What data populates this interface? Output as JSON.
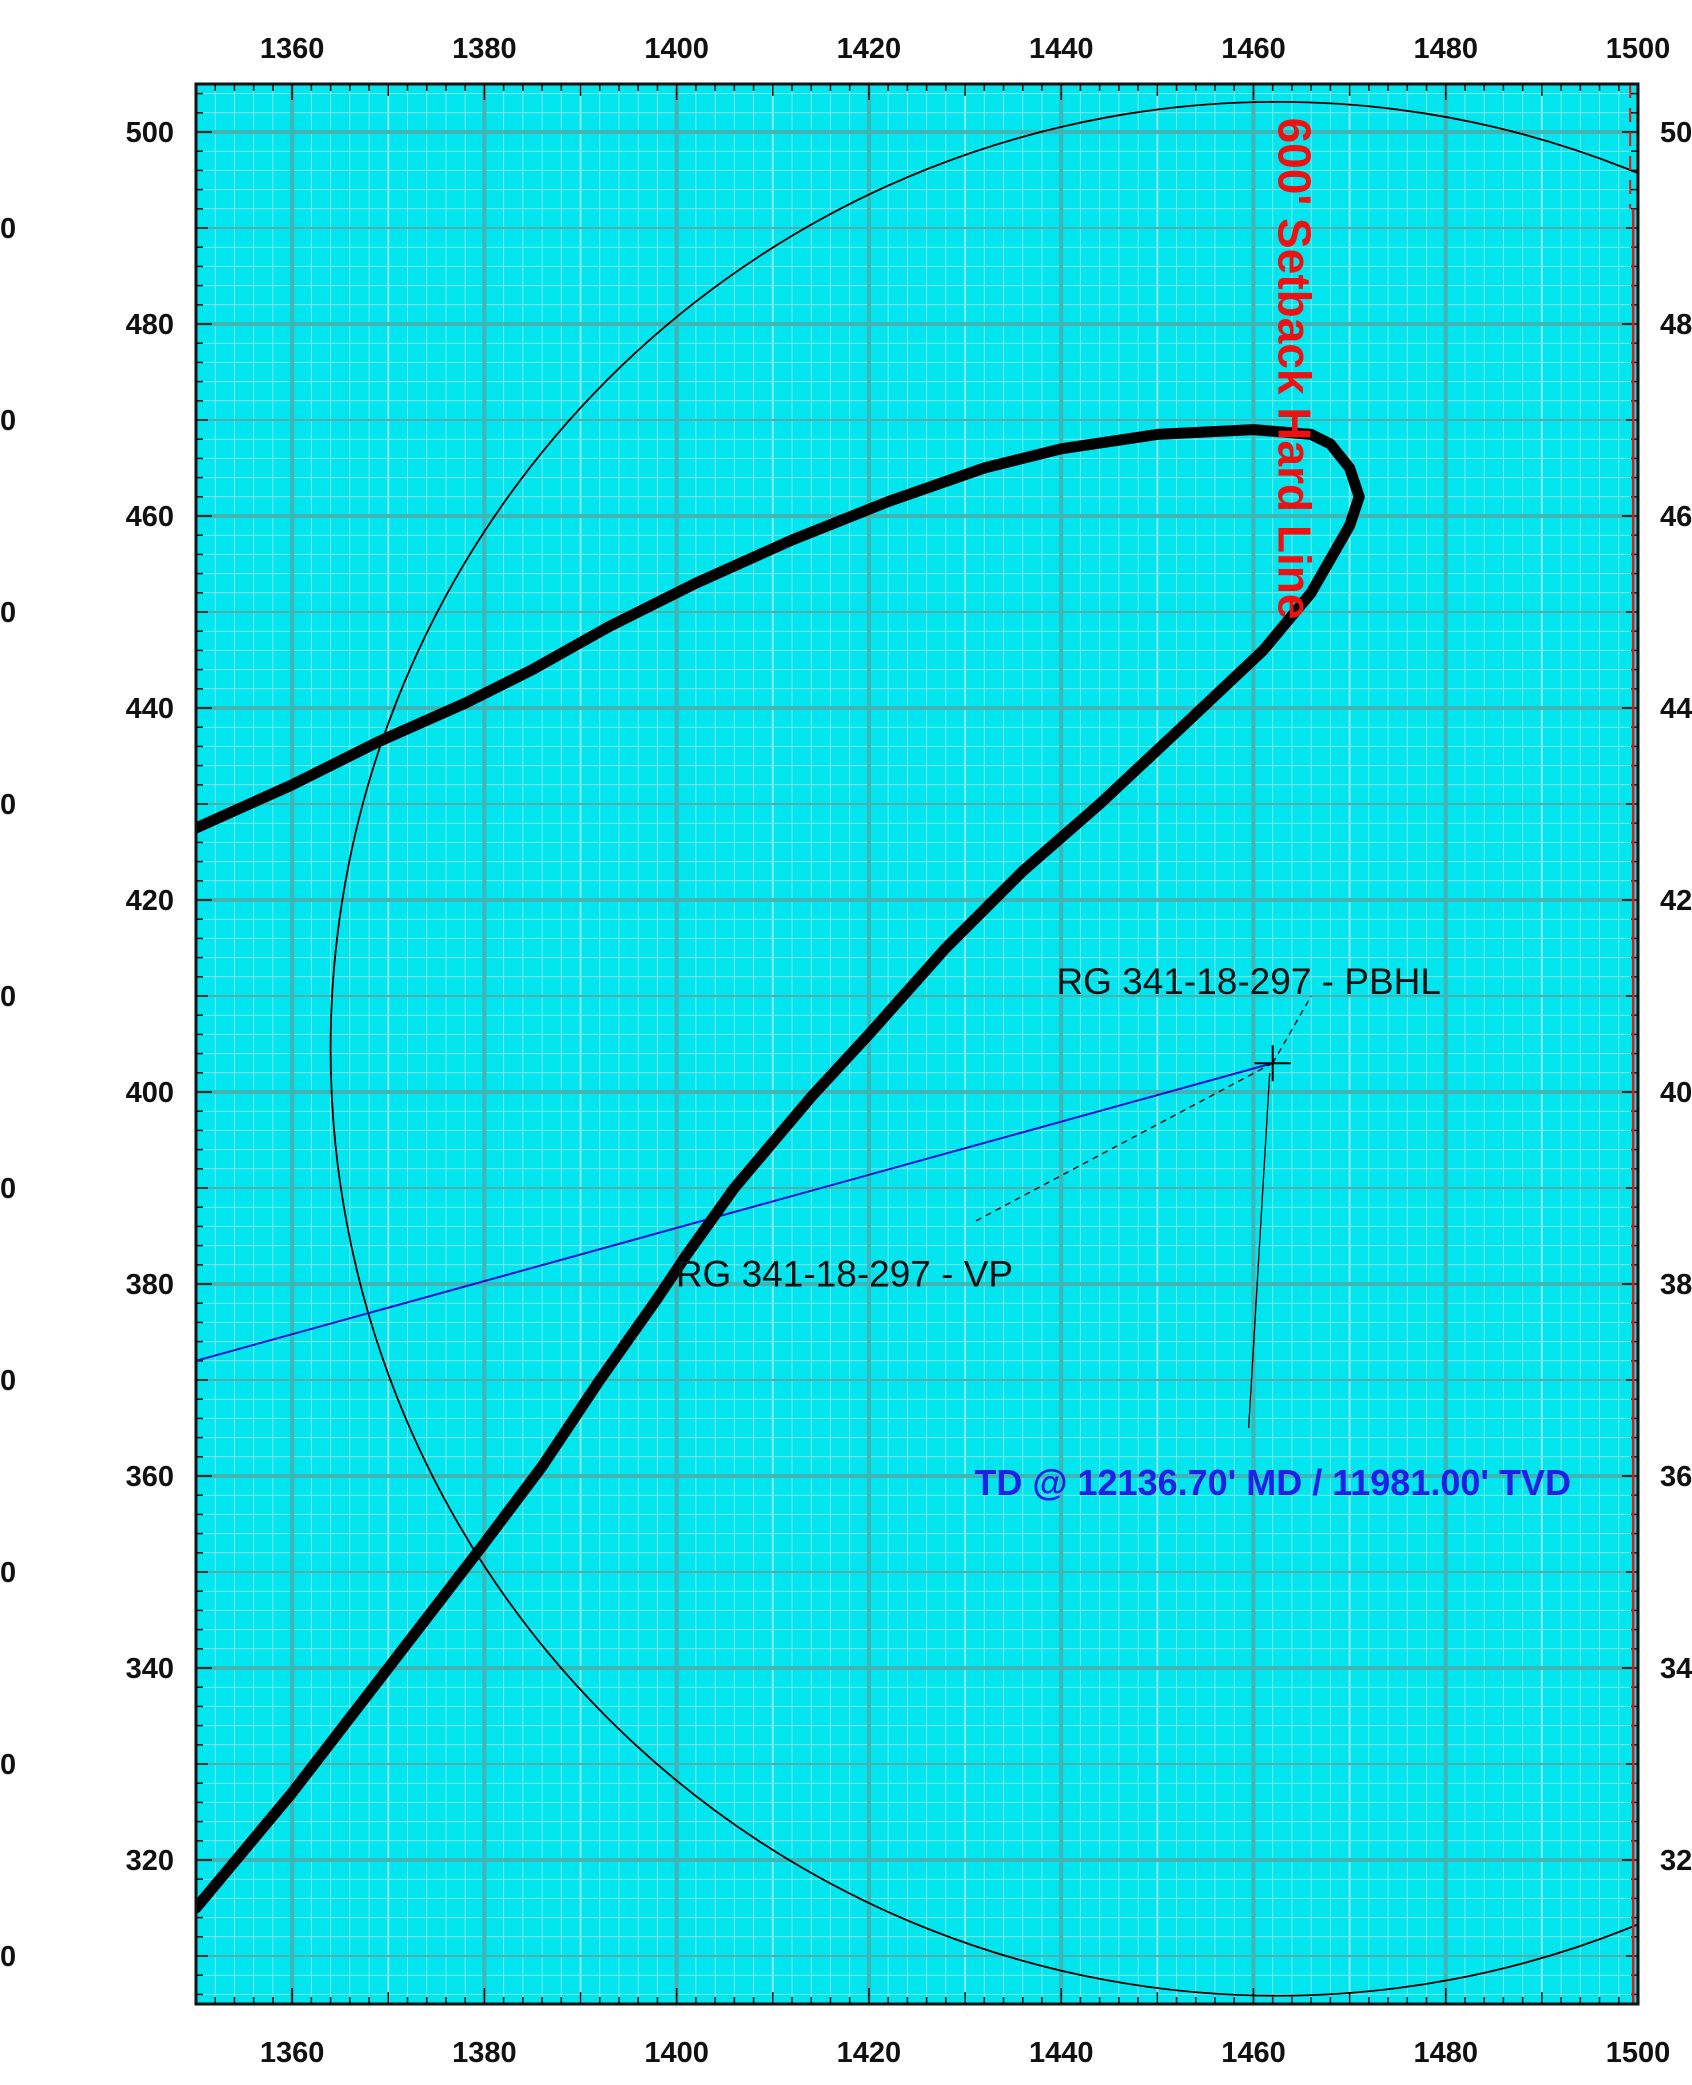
{
  "chart_data": {
    "type": "line",
    "title": "",
    "xlabel": "",
    "ylabel": "",
    "xlim": [
      1350,
      1500
    ],
    "ylim": [
      305,
      505
    ],
    "grid": true,
    "x_ticks": [
      1360,
      1380,
      1400,
      1420,
      1440,
      1460,
      1480,
      1500
    ],
    "y_ticks": [
      320,
      340,
      360,
      380,
      400,
      420,
      440,
      460,
      480,
      500
    ],
    "x_tick_labels": [
      "1360",
      "1380",
      "1400",
      "1420",
      "1440",
      "1460",
      "1480",
      "1500"
    ],
    "y_tick_labels": [
      "320",
      "340",
      "360",
      "380",
      "400",
      "420",
      "440",
      "460",
      "480",
      "500"
    ],
    "right_tick_labels": [
      "32",
      "34",
      "36",
      "38",
      "40",
      "42",
      "44",
      "46",
      "48",
      "50"
    ],
    "left_partial_labels": [
      "0",
      "0",
      "0",
      "0",
      "0",
      "0",
      "0",
      "0",
      "0",
      "0",
      "0"
    ],
    "colors": {
      "grid_major": "#3fb5b5",
      "grid_minor": "#7fe8e8",
      "background": "#00e5ee",
      "wellbore": "#000000",
      "plan_line": "#1414d2",
      "setback": "#ee1111",
      "td_text": "#1f1fe6"
    },
    "series": [
      {
        "key": "wellbore",
        "values": [
          [
            1350,
            315
          ],
          [
            1355,
            321
          ],
          [
            1360,
            327
          ],
          [
            1365,
            333.5
          ],
          [
            1370,
            340
          ],
          [
            1375,
            346.5
          ],
          [
            1380,
            353
          ],
          [
            1386,
            361
          ],
          [
            1392,
            370
          ],
          [
            1398,
            378.5
          ],
          [
            1401,
            383
          ],
          [
            1406,
            390
          ],
          [
            1414,
            399.5
          ],
          [
            1420,
            406
          ],
          [
            1428,
            415
          ],
          [
            1436,
            423
          ],
          [
            1444,
            430
          ],
          [
            1452,
            437.5
          ],
          [
            1461,
            446
          ],
          [
            1466,
            452
          ],
          [
            1470,
            459
          ],
          [
            1471,
            462
          ],
          [
            1470,
            465
          ],
          [
            1468,
            467.5
          ],
          [
            1466,
            468.5
          ],
          [
            1460,
            469
          ],
          [
            1450,
            468.5
          ],
          [
            1440,
            467
          ],
          [
            1432,
            465
          ],
          [
            1422,
            461.5
          ],
          [
            1412,
            457.5
          ],
          [
            1402,
            453
          ],
          [
            1393,
            448.5
          ],
          [
            1385,
            444
          ],
          [
            1378,
            440.5
          ],
          [
            1369,
            436.5
          ],
          [
            1360,
            432
          ],
          [
            1350,
            427.5
          ]
        ]
      },
      {
        "key": "plan-line",
        "values": [
          [
            1350,
            372
          ],
          [
            1462,
            403
          ]
        ]
      }
    ],
    "circle": {
      "center": [
        1462.5,
        404.5
      ],
      "radius": 98.5
    },
    "setback_line": {
      "x": 1499.5,
      "label": "600' Setback Hard Line"
    },
    "annotations": [
      {
        "key": "pbhl",
        "text": "RG 341-18-297 - PBHL",
        "x": 1459.5,
        "y": 410
      },
      {
        "key": "vp",
        "text": "RG 341-18-297 - VP",
        "x": 1435,
        "y": 381
      },
      {
        "key": "td",
        "text": "TD @ 12136.70' MD / 11981.00' TVD",
        "x": 1462,
        "y": 359.5
      }
    ],
    "markers": [
      {
        "key": "pbhl-cross",
        "x": 1462,
        "y": 403
      }
    ]
  }
}
